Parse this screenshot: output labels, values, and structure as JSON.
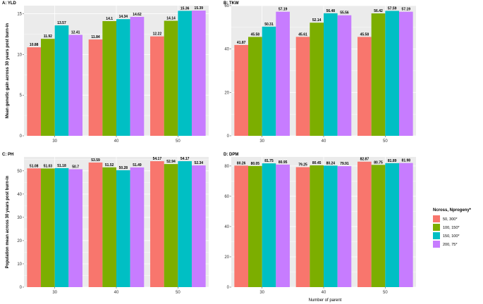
{
  "chart_data": [
    {
      "type": "bar",
      "title": "A: YLD",
      "ylabel": "Mean genetic gain across 30 years post burn-in",
      "xlabel": "",
      "categories": [
        "30",
        "40",
        "50"
      ],
      "ylim": [
        0,
        16
      ],
      "yticks": [
        0,
        5,
        10,
        15
      ],
      "series": [
        {
          "name": "50, 300*",
          "values": [
            10.88,
            11.84,
            12.22
          ],
          "labels": [
            "10.88",
            "11.84",
            "12.22"
          ]
        },
        {
          "name": "100, 150*",
          "values": [
            11.92,
            14.1,
            14.14
          ],
          "labels": [
            "11.92",
            "14.1",
            "14.14"
          ]
        },
        {
          "name": "150, 100*",
          "values": [
            13.57,
            14.34,
            15.36
          ],
          "labels": [
            "13.57",
            "14.34",
            "15.36"
          ]
        },
        {
          "name": "200, 75*",
          "values": [
            12.41,
            14.62,
            15.39
          ],
          "labels": [
            "12.41",
            "14.62",
            "15.39"
          ]
        }
      ]
    },
    {
      "type": "bar",
      "title": "B: TKW",
      "ylabel": "",
      "xlabel": "",
      "categories": [
        "30",
        "40",
        "50"
      ],
      "ylim": [
        0,
        60
      ],
      "yticks": [
        0,
        20,
        40,
        60
      ],
      "series": [
        {
          "name": "50, 300*",
          "values": [
            41.87,
            45.61,
            45.58
          ],
          "labels": [
            "41.87",
            "45.61",
            "45.58"
          ]
        },
        {
          "name": "100, 150*",
          "values": [
            45.58,
            52.14,
            56.42
          ],
          "labels": [
            "45.58",
            "52.14",
            "56.42"
          ]
        },
        {
          "name": "150, 100*",
          "values": [
            50.31,
            56.48,
            57.59
          ],
          "labels": [
            "50.31",
            "56.48",
            "57.59"
          ]
        },
        {
          "name": "200, 75*",
          "values": [
            57.19,
            55.56,
            57.19
          ],
          "labels": [
            "57.19",
            "55.56",
            "57.19"
          ]
        }
      ]
    },
    {
      "type": "bar",
      "title": "C: PH",
      "ylabel": "Population mean across 30 years post burn-in",
      "xlabel": "",
      "categories": [
        "30",
        "40",
        "50"
      ],
      "ylim": [
        0,
        56
      ],
      "yticks": [
        0,
        10,
        20,
        30,
        40,
        50
      ],
      "series": [
        {
          "name": "50, 300*",
          "values": [
            51.08,
            53.59,
            54.17
          ],
          "labels": [
            "51.08",
            "53.59",
            "54.17"
          ]
        },
        {
          "name": "100, 150*",
          "values": [
            51.03,
            51.52,
            52.94
          ],
          "labels": [
            "51.03",
            "51.52",
            "52.94"
          ]
        },
        {
          "name": "150, 100*",
          "values": [
            51.18,
            50.28,
            54.17
          ],
          "labels": [
            "51.18",
            "50.28",
            "54.17"
          ]
        },
        {
          "name": "200, 75*",
          "values": [
            50.7,
            51.49,
            52.34
          ],
          "labels": [
            "50.7",
            "51.49",
            "52.34"
          ]
        }
      ]
    },
    {
      "type": "bar",
      "title": "D: DPM",
      "ylabel": "",
      "xlabel": "Number of parent",
      "categories": [
        "30",
        "40",
        "50"
      ],
      "ylim": [
        0,
        86
      ],
      "yticks": [
        0,
        20,
        40,
        60,
        80
      ],
      "series": [
        {
          "name": "50, 300*",
          "values": [
            80.26,
            79.25,
            82.87
          ],
          "labels": [
            "80.26",
            "79.25",
            "82.87"
          ]
        },
        {
          "name": "100, 150*",
          "values": [
            80.05,
            80.45,
            80.75
          ],
          "labels": [
            "80.05",
            "80.45",
            "80.75"
          ]
        },
        {
          "name": "150, 100*",
          "values": [
            81.75,
            80.24,
            81.89
          ],
          "labels": [
            "81.75",
            "80.24",
            "81.89"
          ]
        },
        {
          "name": "200, 75*",
          "values": [
            80.95,
            79.91,
            81.98
          ],
          "labels": [
            "80.95",
            "79.91",
            "81.98"
          ]
        }
      ]
    }
  ],
  "legend": {
    "title": "Ncross, Nprogeny*",
    "placement": "right",
    "items": [
      "50, 300*",
      "100, 150*",
      "150, 100*",
      "200, 75*"
    ]
  },
  "colors": [
    "#F8766D",
    "#7CAE00",
    "#00BFC4",
    "#C77CFF"
  ],
  "panel_background": "#EBEBEB",
  "grid": true
}
